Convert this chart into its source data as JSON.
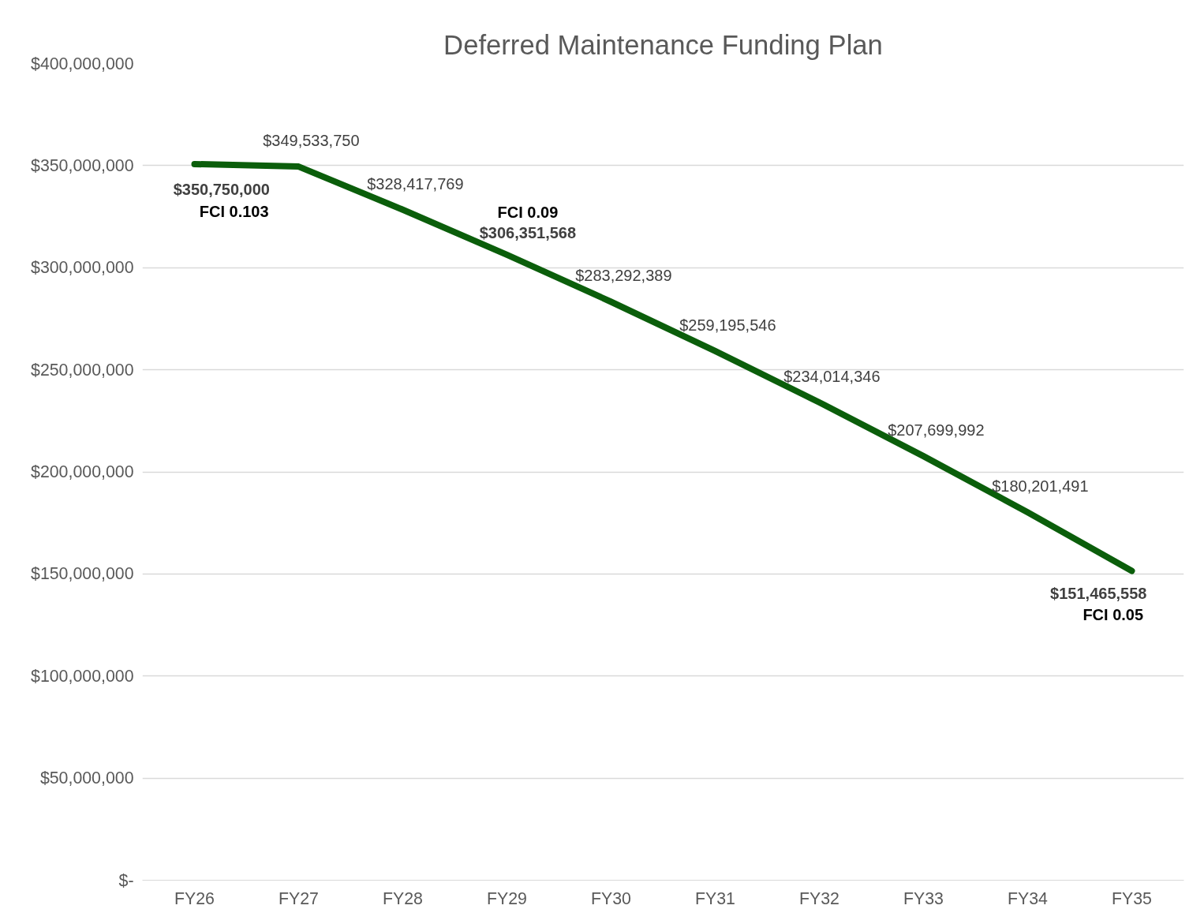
{
  "chart_data": {
    "type": "line",
    "title": "Deferred Maintenance Funding Plan",
    "categories": [
      "FY26",
      "FY27",
      "FY28",
      "FY29",
      "FY30",
      "FY31",
      "FY32",
      "FY33",
      "FY34",
      "FY35"
    ],
    "series": [
      {
        "color": "#0b5e0b",
        "values": [
          350750000,
          349533750,
          328417769,
          306351568,
          283292389,
          259195546,
          234014346,
          207699992,
          180201491,
          151465558
        ]
      }
    ],
    "value_labels": [
      "$350,750,000",
      "$349,533,750",
      "$328,417,769",
      "$306,351,568",
      "$283,292,389",
      "$259,195,546",
      "$234,014,346",
      "$207,699,992",
      "$180,201,491",
      "$151,465,558"
    ],
    "ylim": [
      0,
      400000000
    ],
    "yticks": [
      {
        "value": 0,
        "label": "$-"
      },
      {
        "value": 50000000,
        "label": "$50,000,000"
      },
      {
        "value": 100000000,
        "label": "$100,000,000"
      },
      {
        "value": 150000000,
        "label": "$150,000,000"
      },
      {
        "value": 200000000,
        "label": "$200,000,000"
      },
      {
        "value": 250000000,
        "label": "$250,000,000"
      },
      {
        "value": 300000000,
        "label": "$300,000,000"
      },
      {
        "value": 350000000,
        "label": "$350,000,000"
      },
      {
        "value": 400000000,
        "label": "$400,000,000"
      }
    ],
    "annotations": [
      {
        "text": "FCI 0.103",
        "x": "FY26",
        "y": 350750000
      },
      {
        "text": "FCI 0.09",
        "x": "FY29",
        "y": 306351568
      },
      {
        "text": "FCI 0.05",
        "x": "FY35",
        "y": 151465558
      }
    ],
    "grid": "y",
    "marker": "none",
    "line_style": "solid"
  }
}
